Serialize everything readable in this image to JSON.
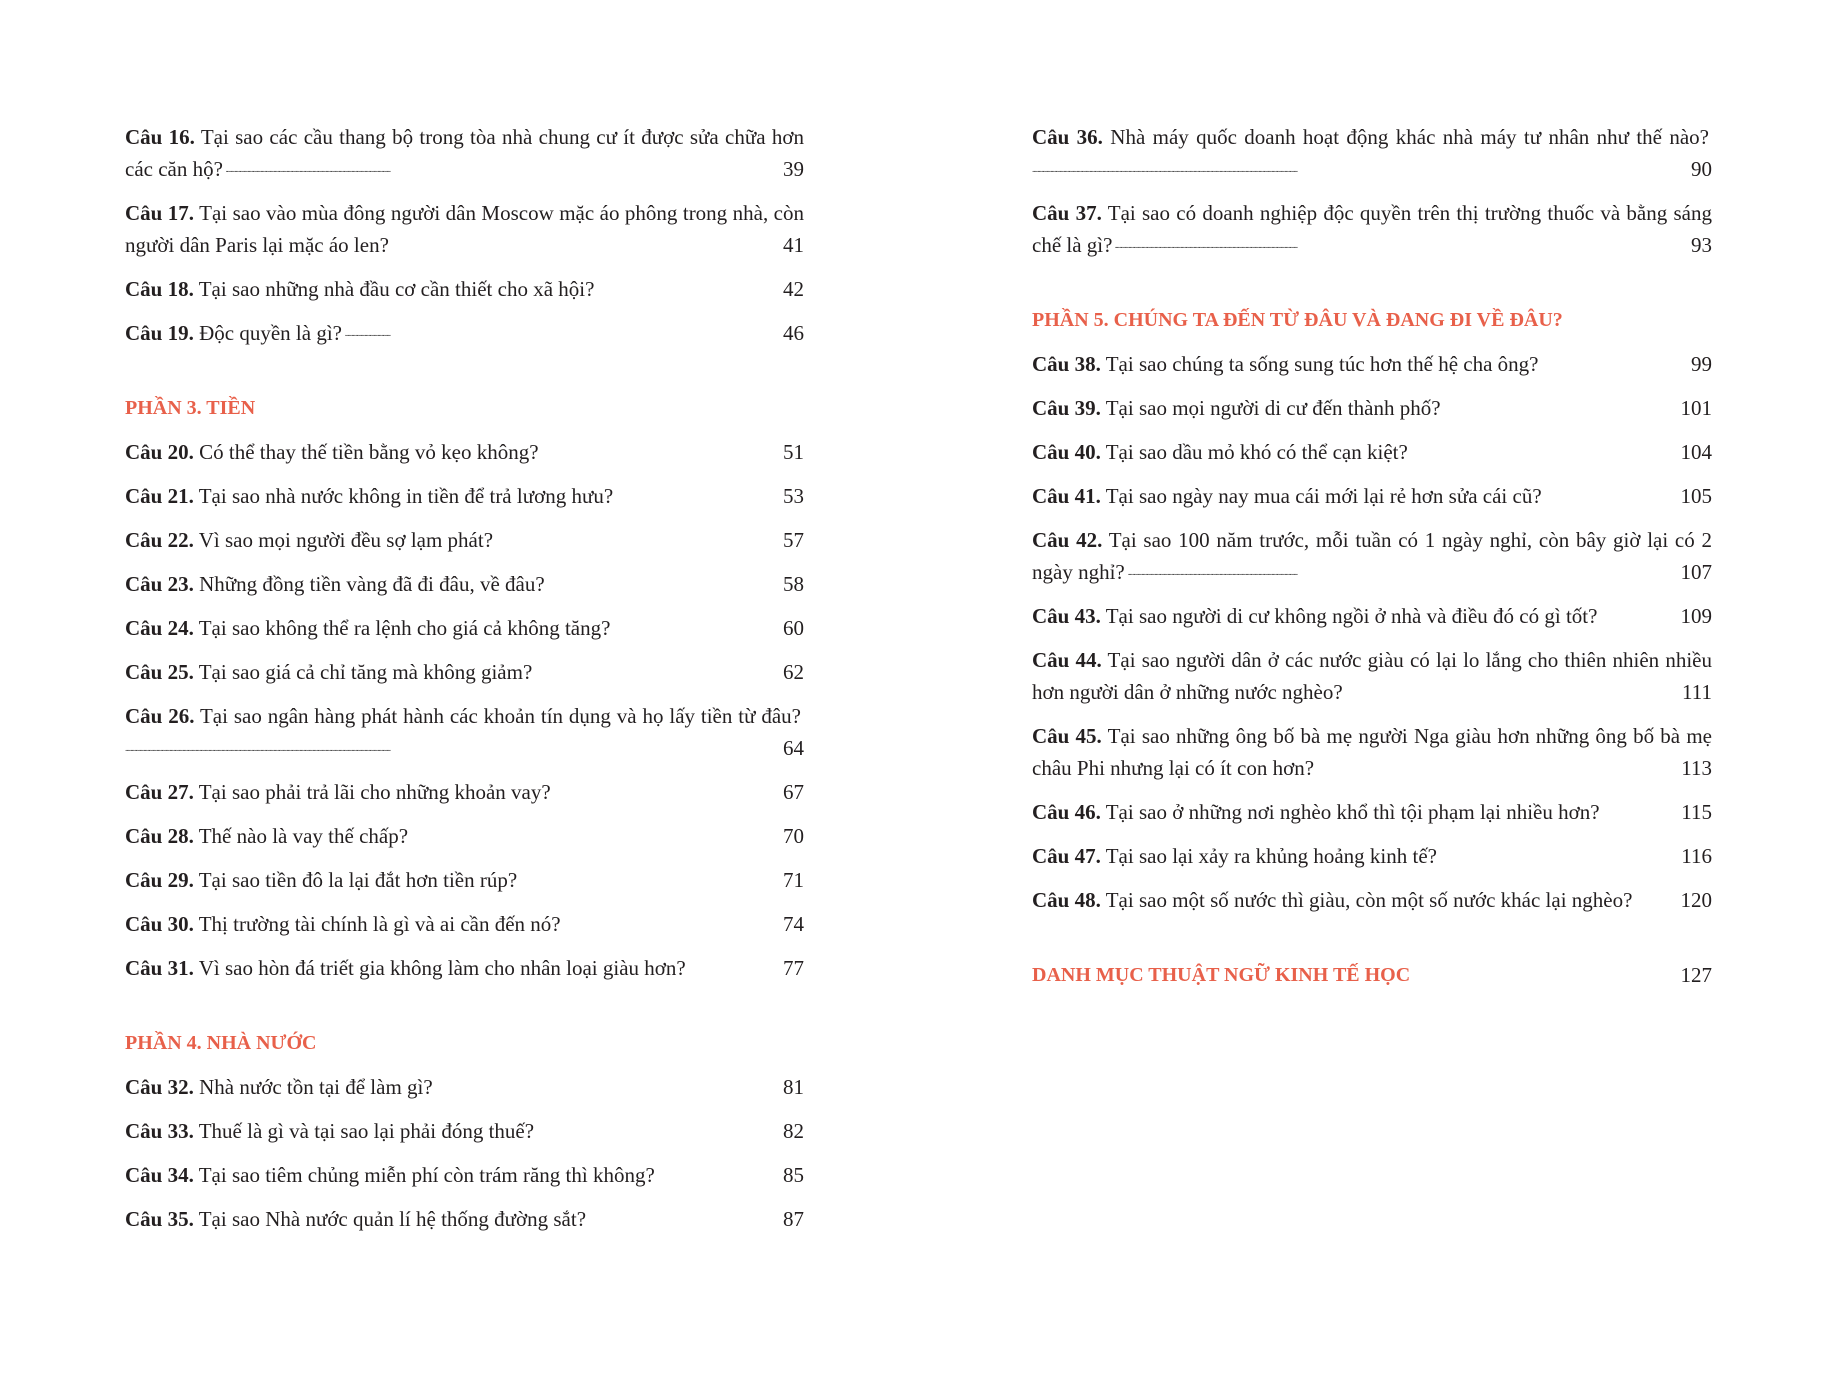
{
  "accent_color": "#e8604a",
  "left_page": {
    "groups": [
      {
        "heading": "",
        "items": [
          {
            "num": "Câu 16.",
            "text": "Tại sao các cầu thang bộ trong tòa nhà chung cư ít được sửa chữa hơn các căn hộ?",
            "page": "39"
          },
          {
            "num": "Câu 17.",
            "text": "Tại sao vào mùa đông người dân Moscow mặc áo phông trong nhà, còn người dân Paris lại mặc áo len?",
            "page": "41"
          },
          {
            "num": "Câu 18.",
            "text": "Tại sao những nhà đầu cơ cần thiết cho xã hội?",
            "page": "42"
          },
          {
            "num": "Câu 19.",
            "text": "Độc quyền là gì?",
            "page": "46"
          }
        ]
      },
      {
        "heading": "PHẦN 3. TIỀN",
        "items": [
          {
            "num": "Câu 20.",
            "text": "Có thể thay thế tiền bằng vỏ kẹo không?",
            "page": "51"
          },
          {
            "num": "Câu 21.",
            "text": "Tại sao nhà nước không in tiền để trả lương hưu?",
            "page": "53"
          },
          {
            "num": "Câu 22.",
            "text": "Vì sao mọi người đều sợ lạm phát?",
            "page": "57"
          },
          {
            "num": "Câu 23.",
            "text": "Những đồng tiền vàng đã đi đâu, về đâu?",
            "page": "58"
          },
          {
            "num": "Câu 24.",
            "text": "Tại sao không thể ra lệnh cho giá cả không tăng?",
            "page": "60"
          },
          {
            "num": "Câu 25.",
            "text": "Tại sao giá cả chỉ tăng mà không giảm?",
            "page": "62"
          },
          {
            "num": "Câu 26.",
            "text": "Tại sao ngân hàng phát hành các khoản tín dụng và họ lấy tiền từ đâu?",
            "page": "64"
          },
          {
            "num": "Câu 27.",
            "text": "Tại sao phải trả lãi cho những khoản vay?",
            "page": "67"
          },
          {
            "num": "Câu 28.",
            "text": "Thế nào là vay thế chấp?",
            "page": "70"
          },
          {
            "num": "Câu 29.",
            "text": "Tại sao tiền đô la lại đắt hơn tiền rúp?",
            "page": "71"
          },
          {
            "num": "Câu 30.",
            "text": "Thị trường tài chính là gì và ai cần đến nó?",
            "page": "74"
          },
          {
            "num": "Câu 31.",
            "text": "Vì sao hòn đá triết gia không làm cho nhân loại giàu hơn?",
            "page": "77"
          }
        ]
      },
      {
        "heading": "PHẦN 4. NHÀ NƯỚC",
        "items": [
          {
            "num": "Câu 32.",
            "text": "Nhà nước tồn tại để làm gì?",
            "page": "81"
          },
          {
            "num": "Câu 33.",
            "text": "Thuế là gì và tại sao lại phải đóng thuế?",
            "page": "82"
          },
          {
            "num": "Câu 34.",
            "text": "Tại sao tiêm chủng miễn phí còn trám răng thì không?",
            "page": "85"
          },
          {
            "num": "Câu 35.",
            "text": "Tại sao Nhà nước quản lí hệ thống đường sắt?",
            "page": "87"
          }
        ]
      }
    ]
  },
  "right_page": {
    "groups": [
      {
        "heading": "",
        "items": [
          {
            "num": "Câu 36.",
            "text": "Nhà máy quốc doanh hoạt động khác nhà máy tư nhân như thế nào?",
            "page": "90"
          },
          {
            "num": "Câu 37.",
            "text": "Tại sao có doanh nghiệp độc quyền trên thị trường thuốc và bằng sáng chế là gì?",
            "page": "93"
          }
        ]
      },
      {
        "heading": "PHẦN 5. CHÚNG TA ĐẾN TỪ ĐÂU VÀ ĐANG ĐI VỀ ĐÂU?",
        "items": [
          {
            "num": "Câu 38.",
            "text": "Tại sao chúng ta sống sung túc hơn thế hệ cha ông?",
            "page": "99"
          },
          {
            "num": "Câu 39.",
            "text": "Tại sao mọi người di cư đến thành phố?",
            "page": "101"
          },
          {
            "num": "Câu 40.",
            "text": "Tại sao dầu mỏ khó có thể cạn kiệt?",
            "page": "104"
          },
          {
            "num": "Câu 41.",
            "text": "Tại sao ngày nay mua cái mới lại rẻ hơn sửa cái cũ?",
            "page": "105"
          },
          {
            "num": "Câu 42.",
            "text": "Tại sao 100 năm trước, mỗi tuần có 1 ngày nghỉ, còn bây giờ lại có 2 ngày nghỉ?",
            "page": "107"
          },
          {
            "num": "Câu 43.",
            "text": "Tại sao người di cư không ngồi ở nhà và điều đó có gì tốt?",
            "page": "109"
          },
          {
            "num": "Câu 44.",
            "text": "Tại sao người dân ở các nước giàu có lại lo lắng cho thiên nhiên nhiều hơn người dân ở những nước nghèo?",
            "page": "111"
          },
          {
            "num": "Câu 45.",
            "text": "Tại sao những ông bố bà mẹ người Nga giàu hơn những ông bố bà mẹ châu Phi nhưng lại có ít con hơn?",
            "page": "113"
          },
          {
            "num": "Câu 46.",
            "text": "Tại sao ở những nơi nghèo khổ thì tội phạm lại nhiều hơn?",
            "page": "115"
          },
          {
            "num": "Câu 47.",
            "text": "Tại sao lại xảy ra khủng hoảng kinh tế?",
            "page": "116"
          },
          {
            "num": "Câu 48.",
            "text": "Tại sao một số nước thì giàu, còn một số nước khác lại nghèo?",
            "page": "120"
          }
        ]
      }
    ],
    "glossary": {
      "heading": "DANH MỤC THUẬT NGỮ KINH TẾ HỌC",
      "page": "127"
    }
  }
}
